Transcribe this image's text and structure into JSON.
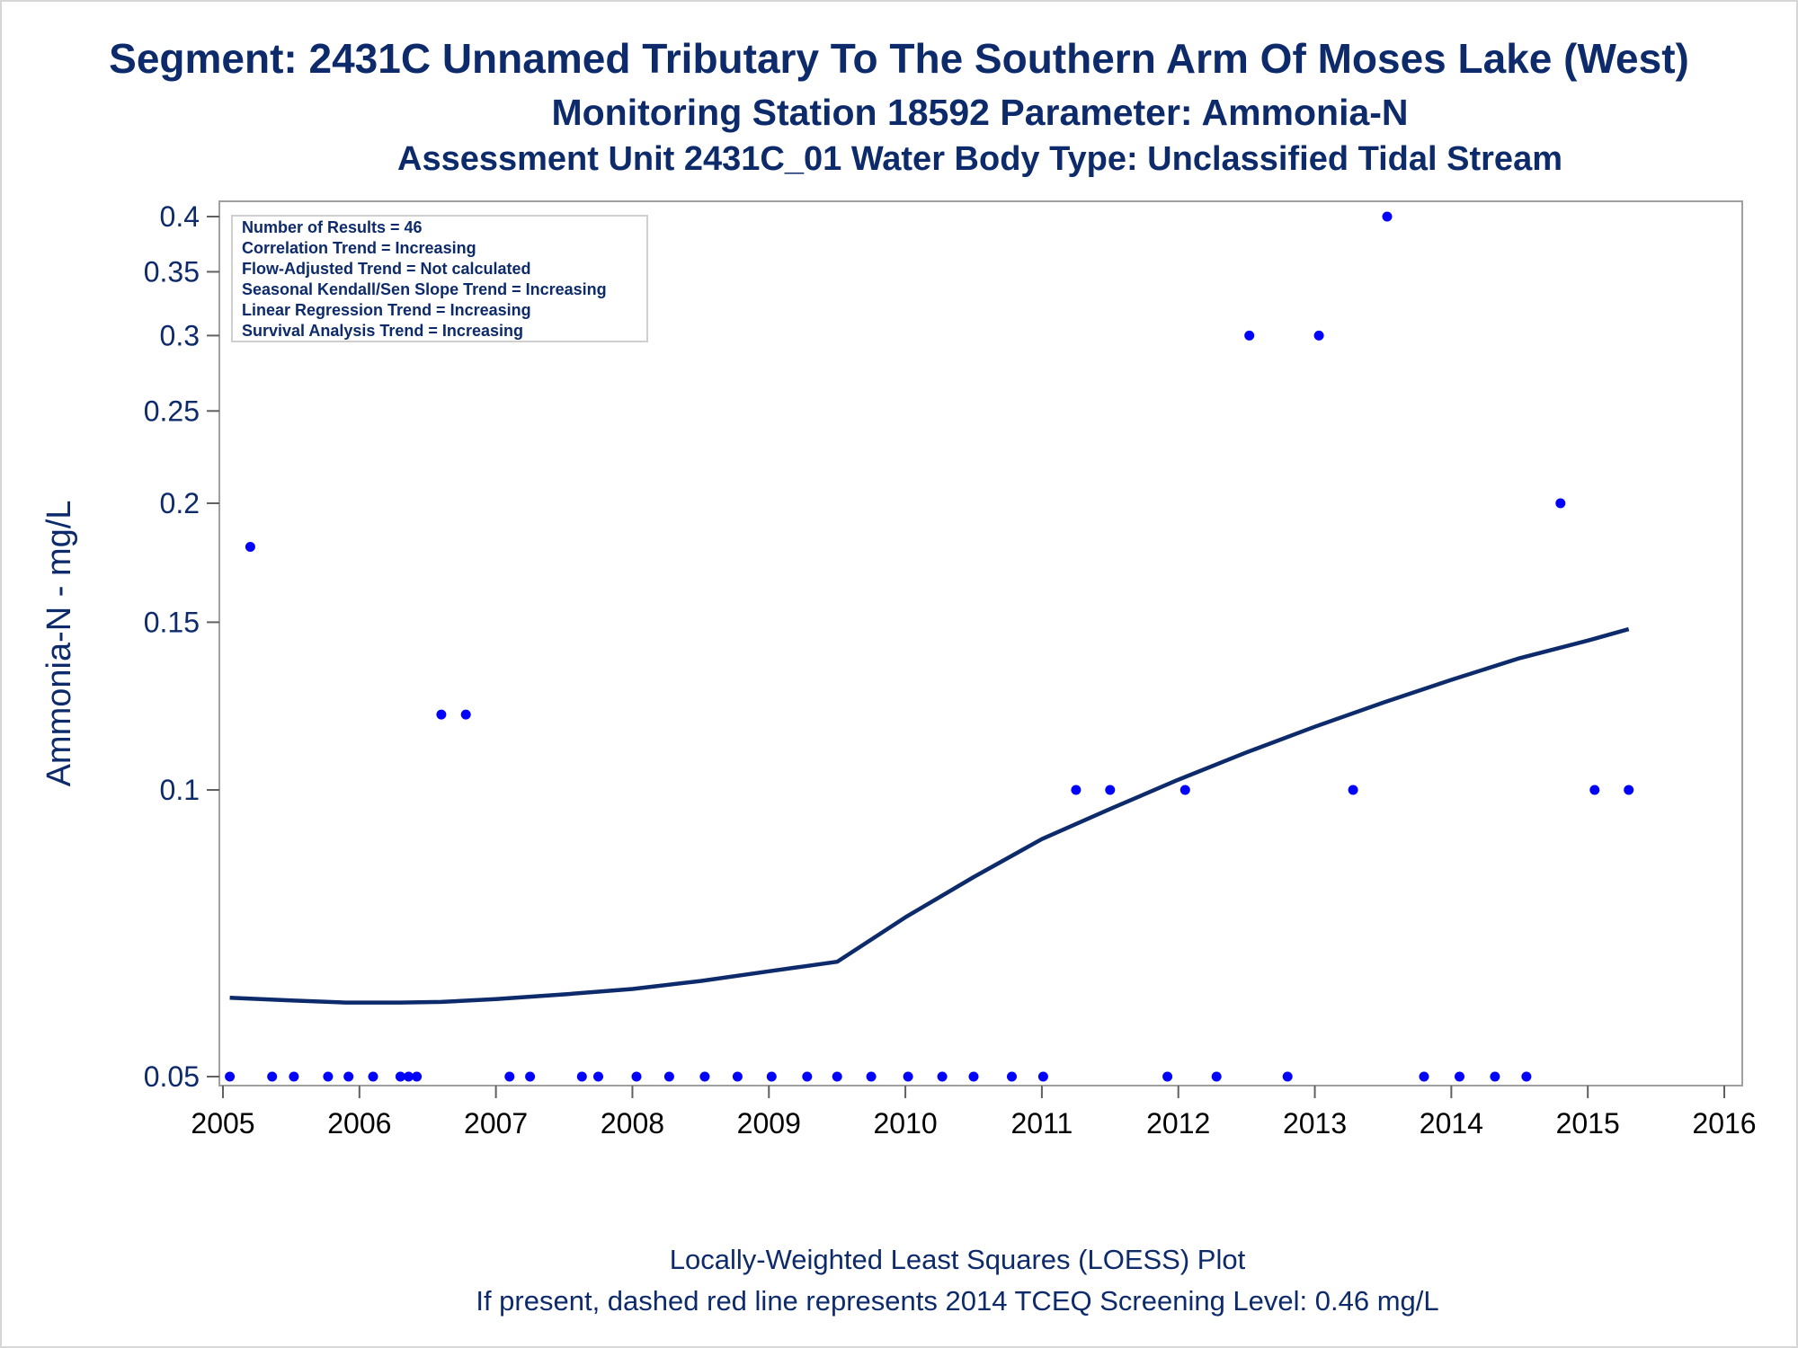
{
  "titles": {
    "line1": "Segment: 2431C  Unnamed Tributary To The Southern Arm Of Moses Lake (West)",
    "line2": "Monitoring Station 18592 Parameter: Ammonia-N",
    "line3": "Assessment Unit 2431C_01   Water Body Type: Unclassified Tidal Stream"
  },
  "footnotes": {
    "line1": "Locally-Weighted Least Squares (LOESS) Plot",
    "line2": "If present, dashed red line represents 2014 TCEQ Screening Level: 0.46 mg/L"
  },
  "stats_box": {
    "lines": [
      "Number of Results = 46",
      "Correlation Trend = Increasing",
      "Flow-Adjusted Trend = Not calculated",
      "Seasonal Kendall/Sen Slope Trend = Increasing",
      "Linear Regression Trend = Increasing",
      "Survival Analysis Trend = Increasing"
    ],
    "placement": "top-left"
  },
  "colors": {
    "title": "#0d2a6b",
    "points": "#0000ff",
    "loess_line": "#0d2a6b",
    "frame": "#a0a0a0"
  },
  "chart_data": {
    "type": "scatter",
    "ylabel": "Ammonia-N - mg/L",
    "xlabel": "",
    "y_scale": "log",
    "xlim": [
      2005,
      2016
    ],
    "ylim": [
      0.05,
      0.4
    ],
    "x_ticks": [
      "2005",
      "2006",
      "2007",
      "2008",
      "2009",
      "2010",
      "2011",
      "2012",
      "2013",
      "2014",
      "2015",
      "2016"
    ],
    "y_ticks": [
      "0.05",
      "0.1",
      "0.15",
      "0.2",
      "0.25",
      "0.3",
      "0.35",
      "0.4"
    ],
    "grid": false,
    "series": [
      {
        "kind": "points",
        "x": [
          2005.05,
          2005.2,
          2005.36,
          2005.52,
          2005.77,
          2005.92,
          2006.1,
          2006.3,
          2006.36,
          2006.42,
          2006.6,
          2006.78,
          2007.1,
          2007.25,
          2007.63,
          2007.75,
          2008.03,
          2008.27,
          2008.53,
          2008.77,
          2009.02,
          2009.28,
          2009.5,
          2009.75,
          2010.02,
          2010.27,
          2010.5,
          2010.78,
          2011.01,
          2011.25,
          2011.5,
          2011.92,
          2012.05,
          2012.28,
          2012.52,
          2012.8,
          2013.03,
          2013.28,
          2013.53,
          2013.8,
          2014.06,
          2014.32,
          2014.55,
          2014.8,
          2015.05,
          2015.3
        ],
        "y": [
          0.05,
          0.18,
          0.05,
          0.05,
          0.05,
          0.05,
          0.05,
          0.05,
          0.05,
          0.05,
          0.12,
          0.12,
          0.05,
          0.05,
          0.05,
          0.05,
          0.05,
          0.05,
          0.05,
          0.05,
          0.05,
          0.05,
          0.05,
          0.05,
          0.05,
          0.05,
          0.05,
          0.05,
          0.05,
          0.1,
          0.1,
          0.05,
          0.1,
          0.05,
          0.3,
          0.05,
          0.3,
          0.1,
          0.4,
          0.05,
          0.05,
          0.05,
          0.05,
          0.2,
          0.1,
          0.1
        ]
      },
      {
        "kind": "loess",
        "x": [
          2005.05,
          2005.5,
          2005.9,
          2006.3,
          2006.6,
          2007.0,
          2007.5,
          2008.0,
          2008.5,
          2009.0,
          2009.5,
          2010.0,
          2010.5,
          2011.0,
          2011.5,
          2012.0,
          2012.5,
          2013.0,
          2013.5,
          2014.0,
          2014.5,
          2015.0,
          2015.3
        ],
        "y": [
          0.0605,
          0.0601,
          0.0598,
          0.0598,
          0.0599,
          0.0603,
          0.061,
          0.0618,
          0.063,
          0.0645,
          0.066,
          0.0735,
          0.081,
          0.0888,
          0.0955,
          0.1025,
          0.1095,
          0.1165,
          0.1235,
          0.1305,
          0.1375,
          0.1435,
          0.1475
        ]
      }
    ]
  }
}
